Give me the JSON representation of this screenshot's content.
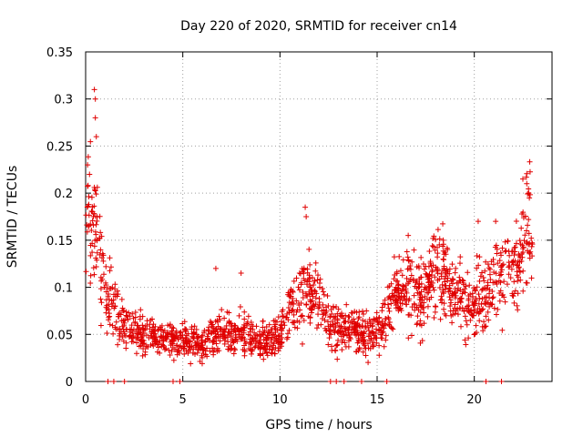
{
  "chart_data": {
    "type": "scatter",
    "title": "Day 220 of 2020, SRMTID for receiver cn14",
    "xlabel": "GPS time / hours",
    "ylabel": "SRMTID / TECUs",
    "xlim": [
      0,
      24
    ],
    "ylim": [
      0,
      0.35
    ],
    "xticks": [
      0,
      5,
      10,
      15,
      20
    ],
    "xtick_labels": [
      "0",
      "5",
      "10",
      "15",
      "20"
    ],
    "yticks": [
      0,
      0.05,
      0.1,
      0.15,
      0.2,
      0.25,
      0.3,
      0.35
    ],
    "ytick_labels": [
      "0",
      "0.05",
      "0.1",
      "0.15",
      "0.2",
      "0.25",
      "0.3",
      "0.35"
    ],
    "grid": true,
    "marker": "+",
    "color": "#e00000",
    "series": [
      {
        "name": "SRMTID",
        "trend_points": [
          [
            0.0,
            0.17
          ],
          [
            0.3,
            0.17
          ],
          [
            0.6,
            0.15
          ],
          [
            1.0,
            0.1
          ],
          [
            1.5,
            0.075
          ],
          [
            2.0,
            0.06
          ],
          [
            3.0,
            0.05
          ],
          [
            4.0,
            0.045
          ],
          [
            5.0,
            0.042
          ],
          [
            6.0,
            0.04
          ],
          [
            7.0,
            0.055
          ],
          [
            8.0,
            0.05
          ],
          [
            9.0,
            0.04
          ],
          [
            10.0,
            0.05
          ],
          [
            10.5,
            0.075
          ],
          [
            11.3,
            0.1
          ],
          [
            12.0,
            0.09
          ],
          [
            12.5,
            0.06
          ],
          [
            13.5,
            0.055
          ],
          [
            14.5,
            0.05
          ],
          [
            15.2,
            0.055
          ],
          [
            15.8,
            0.09
          ],
          [
            16.5,
            0.1
          ],
          [
            17.5,
            0.095
          ],
          [
            18.3,
            0.12
          ],
          [
            19.0,
            0.09
          ],
          [
            20.0,
            0.08
          ],
          [
            21.0,
            0.1
          ],
          [
            21.8,
            0.12
          ],
          [
            22.3,
            0.12
          ],
          [
            22.8,
            0.16
          ],
          [
            23.0,
            0.15
          ]
        ],
        "notable_points": [
          [
            0.45,
            0.31
          ],
          [
            0.5,
            0.3
          ],
          [
            0.5,
            0.28
          ],
          [
            0.55,
            0.26
          ],
          [
            0.1,
            0.23
          ],
          [
            0.2,
            0.22
          ],
          [
            11.3,
            0.185
          ],
          [
            11.35,
            0.175
          ],
          [
            16.6,
            0.155
          ],
          [
            18.4,
            0.15
          ],
          [
            22.5,
            0.215
          ],
          [
            22.7,
            0.21
          ],
          [
            22.8,
            0.2
          ],
          [
            6.7,
            0.12
          ],
          [
            8.0,
            0.115
          ],
          [
            20.2,
            0.17
          ],
          [
            21.1,
            0.17
          ]
        ],
        "zero_points": [
          1.15,
          1.45,
          2.0,
          4.5,
          4.85,
          12.6,
          12.9,
          13.3,
          14.2,
          15.5,
          20.6,
          21.4
        ]
      }
    ]
  }
}
